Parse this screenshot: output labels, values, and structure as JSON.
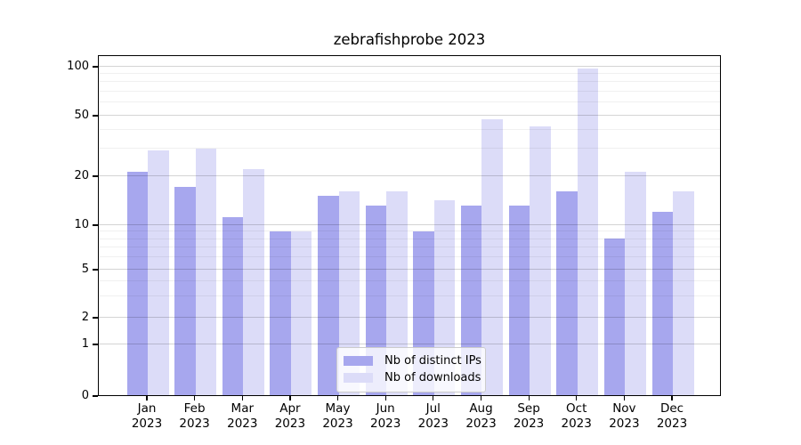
{
  "chart_data": {
    "type": "bar",
    "title": "zebrafishprobe 2023",
    "categories": [
      "Jan",
      "Feb",
      "Mar",
      "Apr",
      "May",
      "Jun",
      "Jul",
      "Aug",
      "Sep",
      "Oct",
      "Nov",
      "Dec"
    ],
    "x_tick_year": "2023",
    "series": [
      {
        "name": "Nb of distinct IPs",
        "color": "#a7a7ee",
        "values": [
          21,
          17,
          11,
          9,
          15,
          13,
          9,
          13,
          13,
          16,
          8,
          12
        ]
      },
      {
        "name": "Nb of downloads",
        "color": "#dcdcf8",
        "values": [
          29,
          30,
          22,
          9,
          16,
          16,
          14,
          47,
          42,
          96,
          21,
          16
        ]
      }
    ],
    "yscale": "symlog",
    "y_tick_values": [
      0,
      1,
      2,
      5,
      10,
      20,
      50,
      100
    ],
    "y_tick_labels_top_to_bottom": [
      "100",
      "50",
      "20",
      "10",
      "5",
      "2",
      "1",
      "0"
    ],
    "y_minor_gridlines": [
      3,
      4,
      6,
      7,
      8,
      9,
      30,
      40,
      60,
      70,
      80,
      90
    ],
    "ylim": [
      0,
      115
    ],
    "xlabel": "",
    "ylabel": "",
    "grid": true,
    "legend_position": "lower center"
  },
  "colors": {
    "ips_bar": "#a7a7ee",
    "downloads_bar": "#dcdcf8",
    "axis": "#000000",
    "grid_major": "#d9d9d9",
    "grid_minor": "#f0f0f0",
    "legend_border": "#cccccc",
    "background": "#ffffff"
  }
}
